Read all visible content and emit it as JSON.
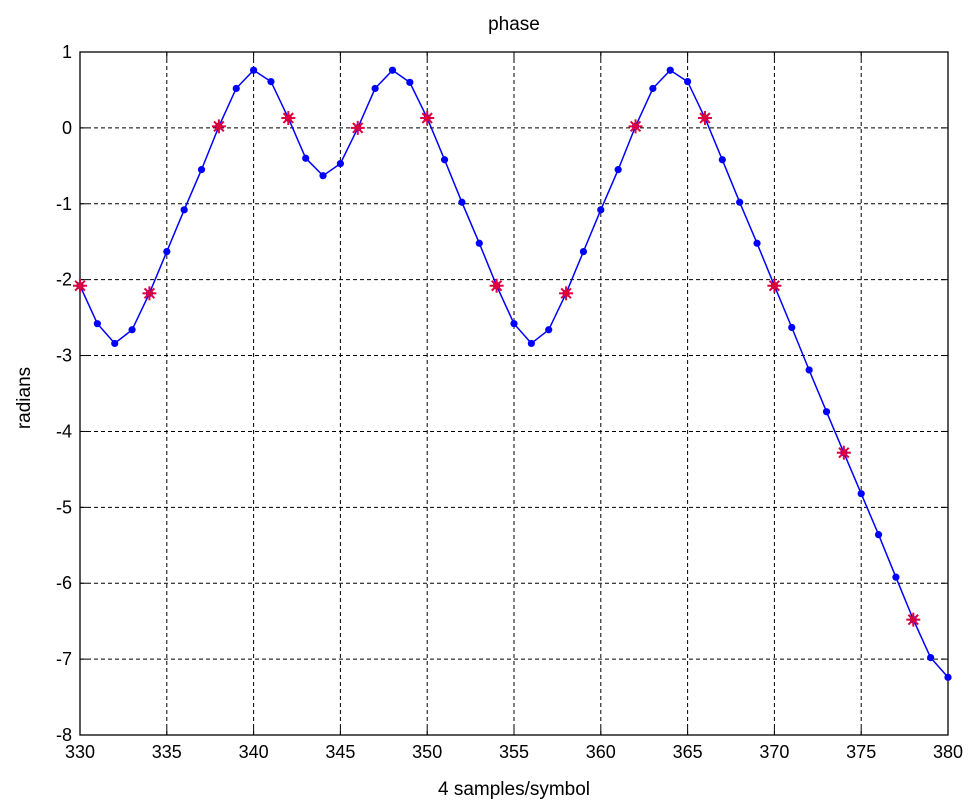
{
  "chart_data": {
    "type": "line",
    "title": "phase",
    "xlabel": "4 samples/symbol",
    "ylabel": "radians",
    "xlim": [
      330,
      380
    ],
    "ylim": [
      -8,
      1
    ],
    "x_ticks": [
      330,
      335,
      340,
      345,
      350,
      355,
      360,
      365,
      370,
      375,
      380
    ],
    "y_ticks": [
      1,
      0,
      -1,
      -2,
      -3,
      -4,
      -5,
      -6,
      -7,
      -8
    ],
    "x_tick_labels": [
      "330",
      "335",
      "340",
      "345",
      "350",
      "355",
      "360",
      "365",
      "370",
      "375",
      "380"
    ],
    "y_tick_labels": [
      "1",
      "0",
      "-1",
      "-2",
      "-3",
      "-4",
      "-5",
      "-6",
      "-7",
      "-8"
    ],
    "grid": true,
    "series": [
      {
        "style": "line-with-dots",
        "color": "#0000ff",
        "x": [
          330,
          331,
          332,
          333,
          334,
          335,
          336,
          337,
          338,
          339,
          340,
          341,
          342,
          343,
          344,
          345,
          346,
          347,
          348,
          349,
          350,
          351,
          352,
          353,
          354,
          355,
          356,
          357,
          358,
          359,
          360,
          361,
          362,
          363,
          364,
          365,
          366,
          367,
          368,
          369,
          370,
          371,
          372,
          373,
          374,
          375,
          376,
          377,
          378,
          379,
          380
        ],
        "y": [
          -2.08,
          -2.58,
          -2.84,
          -2.66,
          -2.18,
          -1.63,
          -1.08,
          -0.55,
          0.02,
          0.52,
          0.76,
          0.61,
          0.13,
          -0.4,
          -0.63,
          -0.47,
          0.0,
          0.52,
          0.76,
          0.6,
          0.13,
          -0.42,
          -0.98,
          -1.52,
          -2.08,
          -2.58,
          -2.84,
          -2.66,
          -2.18,
          -1.63,
          -1.08,
          -0.55,
          0.02,
          0.52,
          0.76,
          0.61,
          0.13,
          -0.42,
          -0.98,
          -1.52,
          -2.08,
          -2.63,
          -3.19,
          -3.74,
          -4.28,
          -4.82,
          -5.36,
          -5.92,
          -6.48,
          -6.98,
          -7.24
        ]
      },
      {
        "style": "star-markers",
        "color": "#e0003a",
        "x": [
          330,
          334,
          338,
          342,
          346,
          350,
          354,
          358,
          362,
          366,
          370,
          374,
          378
        ],
        "y": [
          -2.08,
          -2.18,
          0.02,
          0.13,
          0.0,
          0.13,
          -2.08,
          -2.18,
          0.02,
          0.13,
          -2.08,
          -4.28,
          -6.48
        ]
      }
    ]
  }
}
